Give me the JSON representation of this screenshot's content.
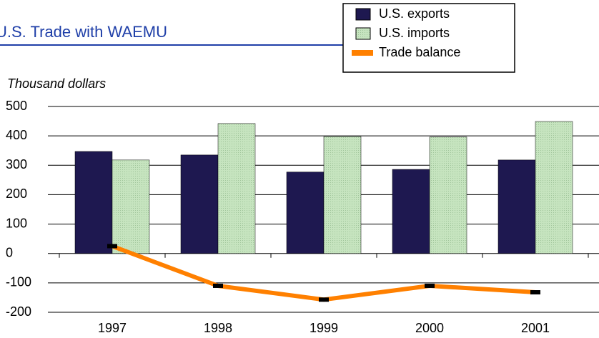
{
  "chart_data": {
    "type": "bar_line",
    "title": "U.S. Trade with WAEMU",
    "y_axis_label": "Thousand dollars",
    "categories": [
      "1997",
      "1998",
      "1999",
      "2000",
      "2001"
    ],
    "series": [
      {
        "name": "U.S. exports",
        "type": "bar",
        "color": "#1e1850",
        "values": [
          347,
          335,
          277,
          286,
          318
        ]
      },
      {
        "name": "U.S. imports",
        "type": "bar",
        "color": "#c6e4bf",
        "values": [
          318,
          442,
          398,
          396,
          449
        ]
      },
      {
        "name": "Trade balance",
        "type": "line",
        "color": "#ff8000",
        "values": [
          25,
          -110,
          -157,
          -110,
          -132
        ]
      }
    ],
    "ylim": [
      -200,
      500
    ],
    "yticks": [
      -200,
      -100,
      0,
      100,
      200,
      300,
      400,
      500
    ],
    "grid": true
  }
}
